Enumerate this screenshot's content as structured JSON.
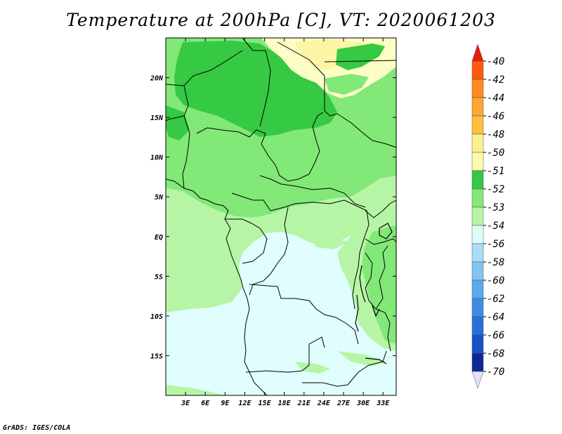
{
  "title": "Temperature at 200hPa [C], VT: 2020061203",
  "credit": "GrADS: IGES/COLA",
  "map": {
    "lon_range": [
      0,
      35
    ],
    "lat_range": [
      -20,
      25
    ],
    "x_ticks": [
      "3E",
      "6E",
      "9E",
      "12E",
      "15E",
      "18E",
      "21E",
      "24E",
      "27E",
      "30E",
      "33E"
    ],
    "x_tick_values": [
      3,
      6,
      9,
      12,
      15,
      18,
      21,
      24,
      27,
      30,
      33
    ],
    "y_ticks": [
      "20N",
      "15N",
      "10N",
      "5N",
      "EQ",
      "5S",
      "10S",
      "15S"
    ],
    "y_tick_values": [
      20,
      15,
      10,
      5,
      0,
      -5,
      -10,
      -15
    ]
  },
  "colors": {
    "c_50": "#fdf5a6",
    "c_51": "#fdfdc6",
    "c_52": "#36c943",
    "c_53": "#82e878",
    "c_54": "#b6f5a5",
    "c_56": "#e0fefe",
    "border": "#000000"
  },
  "legend": {
    "labels": [
      "-40",
      "-42",
      "-44",
      "-46",
      "-48",
      "-50",
      "-51",
      "-52",
      "-53",
      "-54",
      "-56",
      "-58",
      "-60",
      "-62",
      "-64",
      "-66",
      "-68",
      "-70"
    ],
    "colors": [
      "#ff2a00",
      "#ff5a0a",
      "#ff8a1e",
      "#ffa532",
      "#ffc03c",
      "#fff08c",
      "#fffaaa",
      "#35c942",
      "#82e878",
      "#b6f5a5",
      "#dcfcfc",
      "#a8dcf8",
      "#80c4f4",
      "#5aaaf0",
      "#3c8ce6",
      "#286edc",
      "#1a50c8",
      "#0a2896"
    ],
    "top_arrow_color": "#e61e0a",
    "bottom_arrow_color": "#e2e2fa"
  }
}
